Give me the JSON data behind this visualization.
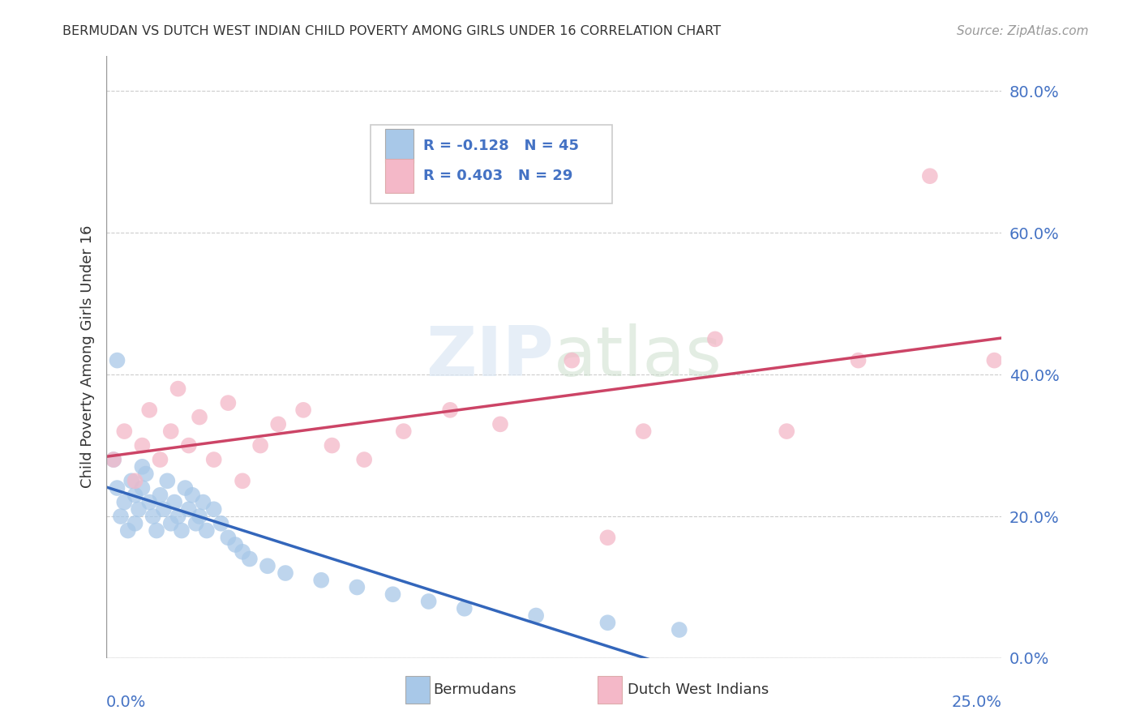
{
  "title": "BERMUDAN VS DUTCH WEST INDIAN CHILD POVERTY AMONG GIRLS UNDER 16 CORRELATION CHART",
  "source": "Source: ZipAtlas.com",
  "ylabel": "Child Poverty Among Girls Under 16",
  "x_min": 0.0,
  "x_max": 0.25,
  "y_min": 0.0,
  "y_max": 0.85,
  "y_ticks_right": [
    0.0,
    0.2,
    0.4,
    0.6,
    0.8
  ],
  "y_tick_labels_right": [
    "0.0%",
    "20.0%",
    "40.0%",
    "60.0%",
    "80.0%"
  ],
  "bermudans_R": -0.128,
  "bermudans_N": 45,
  "dutch_R": 0.403,
  "dutch_N": 29,
  "bermudans_color": "#a8c8e8",
  "dutch_color": "#f4b8c8",
  "bermudans_line_color": "#3366bb",
  "dutch_line_color": "#cc4466",
  "background_color": "#ffffff",
  "grid_color": "#cccccc",
  "berm_x": [
    0.002,
    0.003,
    0.004,
    0.005,
    0.006,
    0.007,
    0.008,
    0.008,
    0.009,
    0.01,
    0.01,
    0.011,
    0.012,
    0.013,
    0.014,
    0.015,
    0.016,
    0.017,
    0.018,
    0.019,
    0.02,
    0.021,
    0.022,
    0.023,
    0.024,
    0.025,
    0.026,
    0.027,
    0.028,
    0.03,
    0.032,
    0.034,
    0.036,
    0.038,
    0.04,
    0.045,
    0.05,
    0.06,
    0.07,
    0.08,
    0.09,
    0.1,
    0.12,
    0.14,
    0.16
  ],
  "berm_y": [
    0.28,
    0.24,
    0.2,
    0.22,
    0.18,
    0.25,
    0.23,
    0.19,
    0.21,
    0.27,
    0.24,
    0.26,
    0.22,
    0.2,
    0.18,
    0.23,
    0.21,
    0.25,
    0.19,
    0.22,
    0.2,
    0.18,
    0.24,
    0.21,
    0.23,
    0.19,
    0.2,
    0.22,
    0.18,
    0.21,
    0.19,
    0.17,
    0.16,
    0.15,
    0.14,
    0.13,
    0.12,
    0.11,
    0.1,
    0.09,
    0.08,
    0.07,
    0.06,
    0.05,
    0.04
  ],
  "dutch_x": [
    0.002,
    0.005,
    0.008,
    0.01,
    0.012,
    0.015,
    0.018,
    0.02,
    0.023,
    0.026,
    0.03,
    0.034,
    0.038,
    0.043,
    0.048,
    0.055,
    0.063,
    0.072,
    0.083,
    0.096,
    0.11,
    0.13,
    0.15,
    0.17,
    0.19,
    0.21,
    0.23,
    0.248,
    0.14
  ],
  "dutch_y": [
    0.28,
    0.32,
    0.25,
    0.3,
    0.35,
    0.28,
    0.32,
    0.38,
    0.3,
    0.34,
    0.28,
    0.36,
    0.25,
    0.3,
    0.33,
    0.35,
    0.3,
    0.28,
    0.32,
    0.35,
    0.33,
    0.42,
    0.32,
    0.45,
    0.32,
    0.42,
    0.68,
    0.42,
    0.17
  ]
}
